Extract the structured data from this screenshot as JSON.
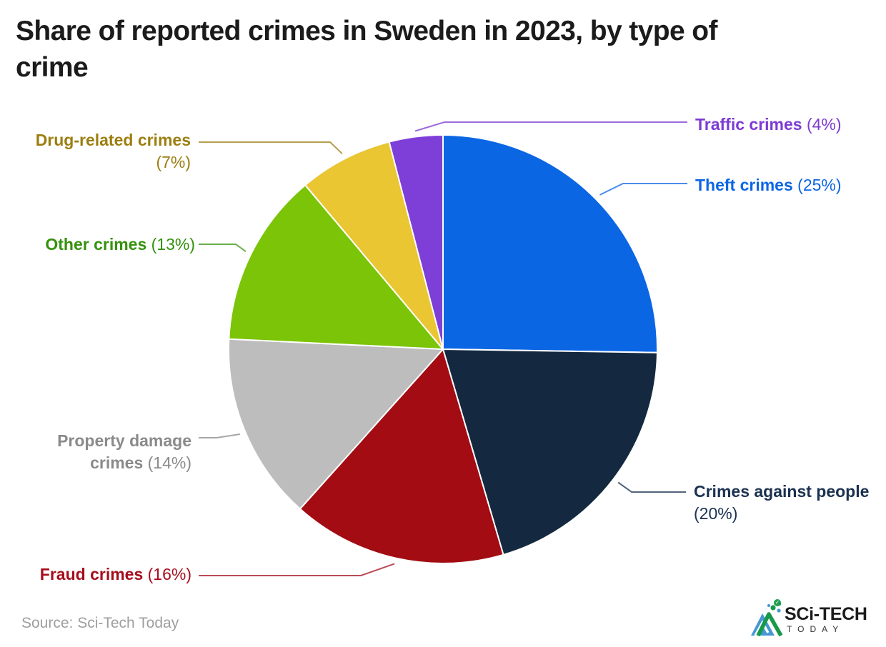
{
  "title": {
    "line1": "Share of reported crimes in Sweden in 2023, by type of",
    "line2": "crime"
  },
  "source": {
    "text": "Source: Sci-Tech Today"
  },
  "logo": {
    "name": "SCi-TECH",
    "subtext": "TODAY",
    "check_icon": "✓",
    "mark_blue": "#4697d4",
    "mark_green": "#169a4a"
  },
  "chart_data": {
    "type": "pie",
    "title": "Share of reported crimes in Sweden in 2023, by type of crime",
    "unit": "percent",
    "start": "12 o'clock",
    "direction": "clockwise",
    "legend": "callout labels with leader lines",
    "values_total_shown": 99,
    "slices": [
      {
        "label": "Theft crimes",
        "value": 25,
        "pct": "(25%)",
        "color": "#0b66e4",
        "label_color": "#0d66e4"
      },
      {
        "label": "Crimes against people",
        "value": 20,
        "pct": "(20%)",
        "color": "#142940",
        "label_color": "#1b3150"
      },
      {
        "label": "Fraud crimes",
        "value": 16,
        "pct": "(16%)",
        "color": "#a20c12",
        "label_color": "#a60d1c"
      },
      {
        "label": "Property damage crimes",
        "value": 14,
        "pct": "(14%)",
        "color": "#bdbdbd",
        "label_color": "#8a8a8a",
        "label_line1": "Property damage",
        "label_line2": "crimes"
      },
      {
        "label": "Other crimes",
        "value": 13,
        "pct": "(13%)",
        "color": "#7bc408",
        "label_color": "#35910d"
      },
      {
        "label": "Drug-related crimes",
        "value": 7,
        "pct": "(7%)",
        "color": "#e9c632",
        "label_color": "#9c7e10"
      },
      {
        "label": "Traffic crimes",
        "value": 4,
        "pct": "(4%)",
        "color": "#7e3ed8",
        "label_color": "#7d3bd3"
      }
    ]
  }
}
